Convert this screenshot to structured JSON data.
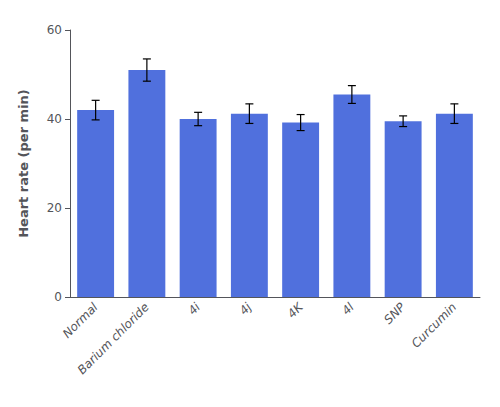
{
  "chart_data": {
    "type": "bar",
    "categories": [
      "Normal",
      "Barium chloride",
      "4i",
      "4j",
      "4K",
      "4l",
      "SNP",
      "Curcumin"
    ],
    "values": [
      42.0,
      51.0,
      40.0,
      41.2,
      39.2,
      45.5,
      39.5,
      41.2
    ],
    "errors": [
      2.2,
      2.5,
      1.5,
      2.2,
      1.8,
      2.0,
      1.2,
      2.2
    ],
    "ylabel": "Heart rate (per min)",
    "ylim": [
      0,
      60
    ],
    "yticks": [
      0,
      20,
      40,
      60
    ],
    "grid": false
  }
}
